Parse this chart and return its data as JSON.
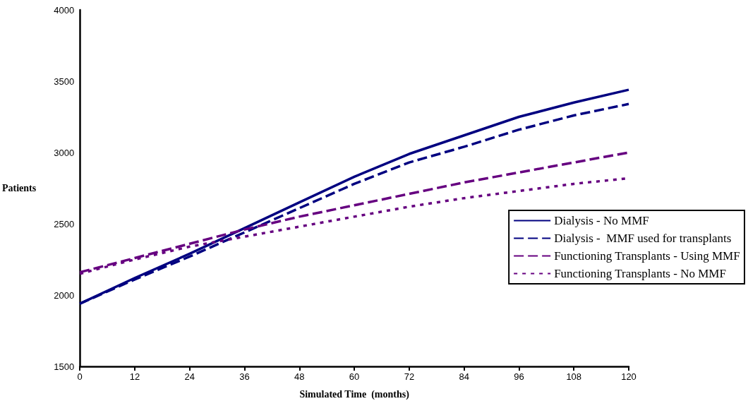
{
  "chart_data": {
    "type": "line",
    "xlabel": "Simulated Time  (months)",
    "ylabel": "Patients",
    "x": [
      0,
      12,
      24,
      36,
      48,
      60,
      72,
      84,
      96,
      108,
      120
    ],
    "xlim": [
      0,
      120
    ],
    "xticks": [
      0,
      12,
      24,
      36,
      48,
      60,
      72,
      84,
      96,
      108,
      120
    ],
    "ylim": [
      1500,
      4000
    ],
    "yticks": [
      1500,
      2000,
      2500,
      3000,
      3500,
      4000
    ],
    "grid": false,
    "legend": "right",
    "marker": "none",
    "series": [
      {
        "name": "Dialysis - No MMF",
        "color": "#000080",
        "line_style": "solid",
        "values": [
          1940,
          2120,
          2290,
          2470,
          2650,
          2830,
          2990,
          3120,
          3250,
          3350,
          3440
        ]
      },
      {
        "name": "Dialysis -  MMF used for transplants",
        "color": "#000080",
        "line_style": "dashed",
        "values": [
          1940,
          2110,
          2270,
          2440,
          2610,
          2780,
          2930,
          3040,
          3160,
          3260,
          3340
        ]
      },
      {
        "name": "Functioning Transplants - Using MMF",
        "color": "#660080",
        "line_style": "dashed",
        "values": [
          2160,
          2260,
          2360,
          2460,
          2550,
          2630,
          2710,
          2790,
          2860,
          2930,
          3000
        ]
      },
      {
        "name": "Functioning Transplants - No MMF",
        "color": "#660080",
        "line_style": "dotted",
        "values": [
          2150,
          2250,
          2340,
          2410,
          2480,
          2550,
          2620,
          2680,
          2730,
          2780,
          2820
        ]
      }
    ]
  }
}
